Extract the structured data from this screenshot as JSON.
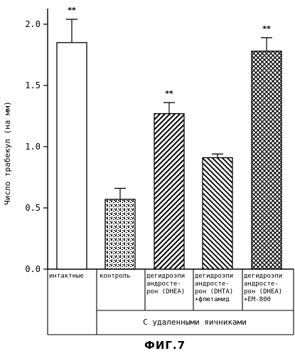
{
  "chart_data": {
    "type": "bar",
    "ylabel": "Число трабекул (на мм)",
    "ylim": [
      0,
      2.0
    ],
    "yticks": [
      "0.0",
      "0.5",
      "1.0",
      "1.5",
      "2.0"
    ],
    "categories": [
      [
        "интактные"
      ],
      [
        "контроль"
      ],
      [
        "дегидроэпи",
        "андросте-",
        "рон (DHEA)"
      ],
      [
        "дегидроэпи",
        "андросте-",
        "рон (DHTA)",
        "+флютамид"
      ],
      [
        "дегидроэпи",
        "андросте-",
        "рон (DHEA)",
        "+EM-800"
      ]
    ],
    "values": [
      1.85,
      0.57,
      1.27,
      0.91,
      1.78
    ],
    "errors": [
      0.19,
      0.09,
      0.09,
      0.03,
      0.11
    ],
    "significance": [
      "**",
      "",
      "**",
      "",
      "**"
    ],
    "patterns": [
      "none",
      "stipple",
      "diagonal",
      "backdiagonal",
      "crosshatch"
    ],
    "group_label": "С удаленными яичниками",
    "figure_label": "ФИГ.7"
  }
}
